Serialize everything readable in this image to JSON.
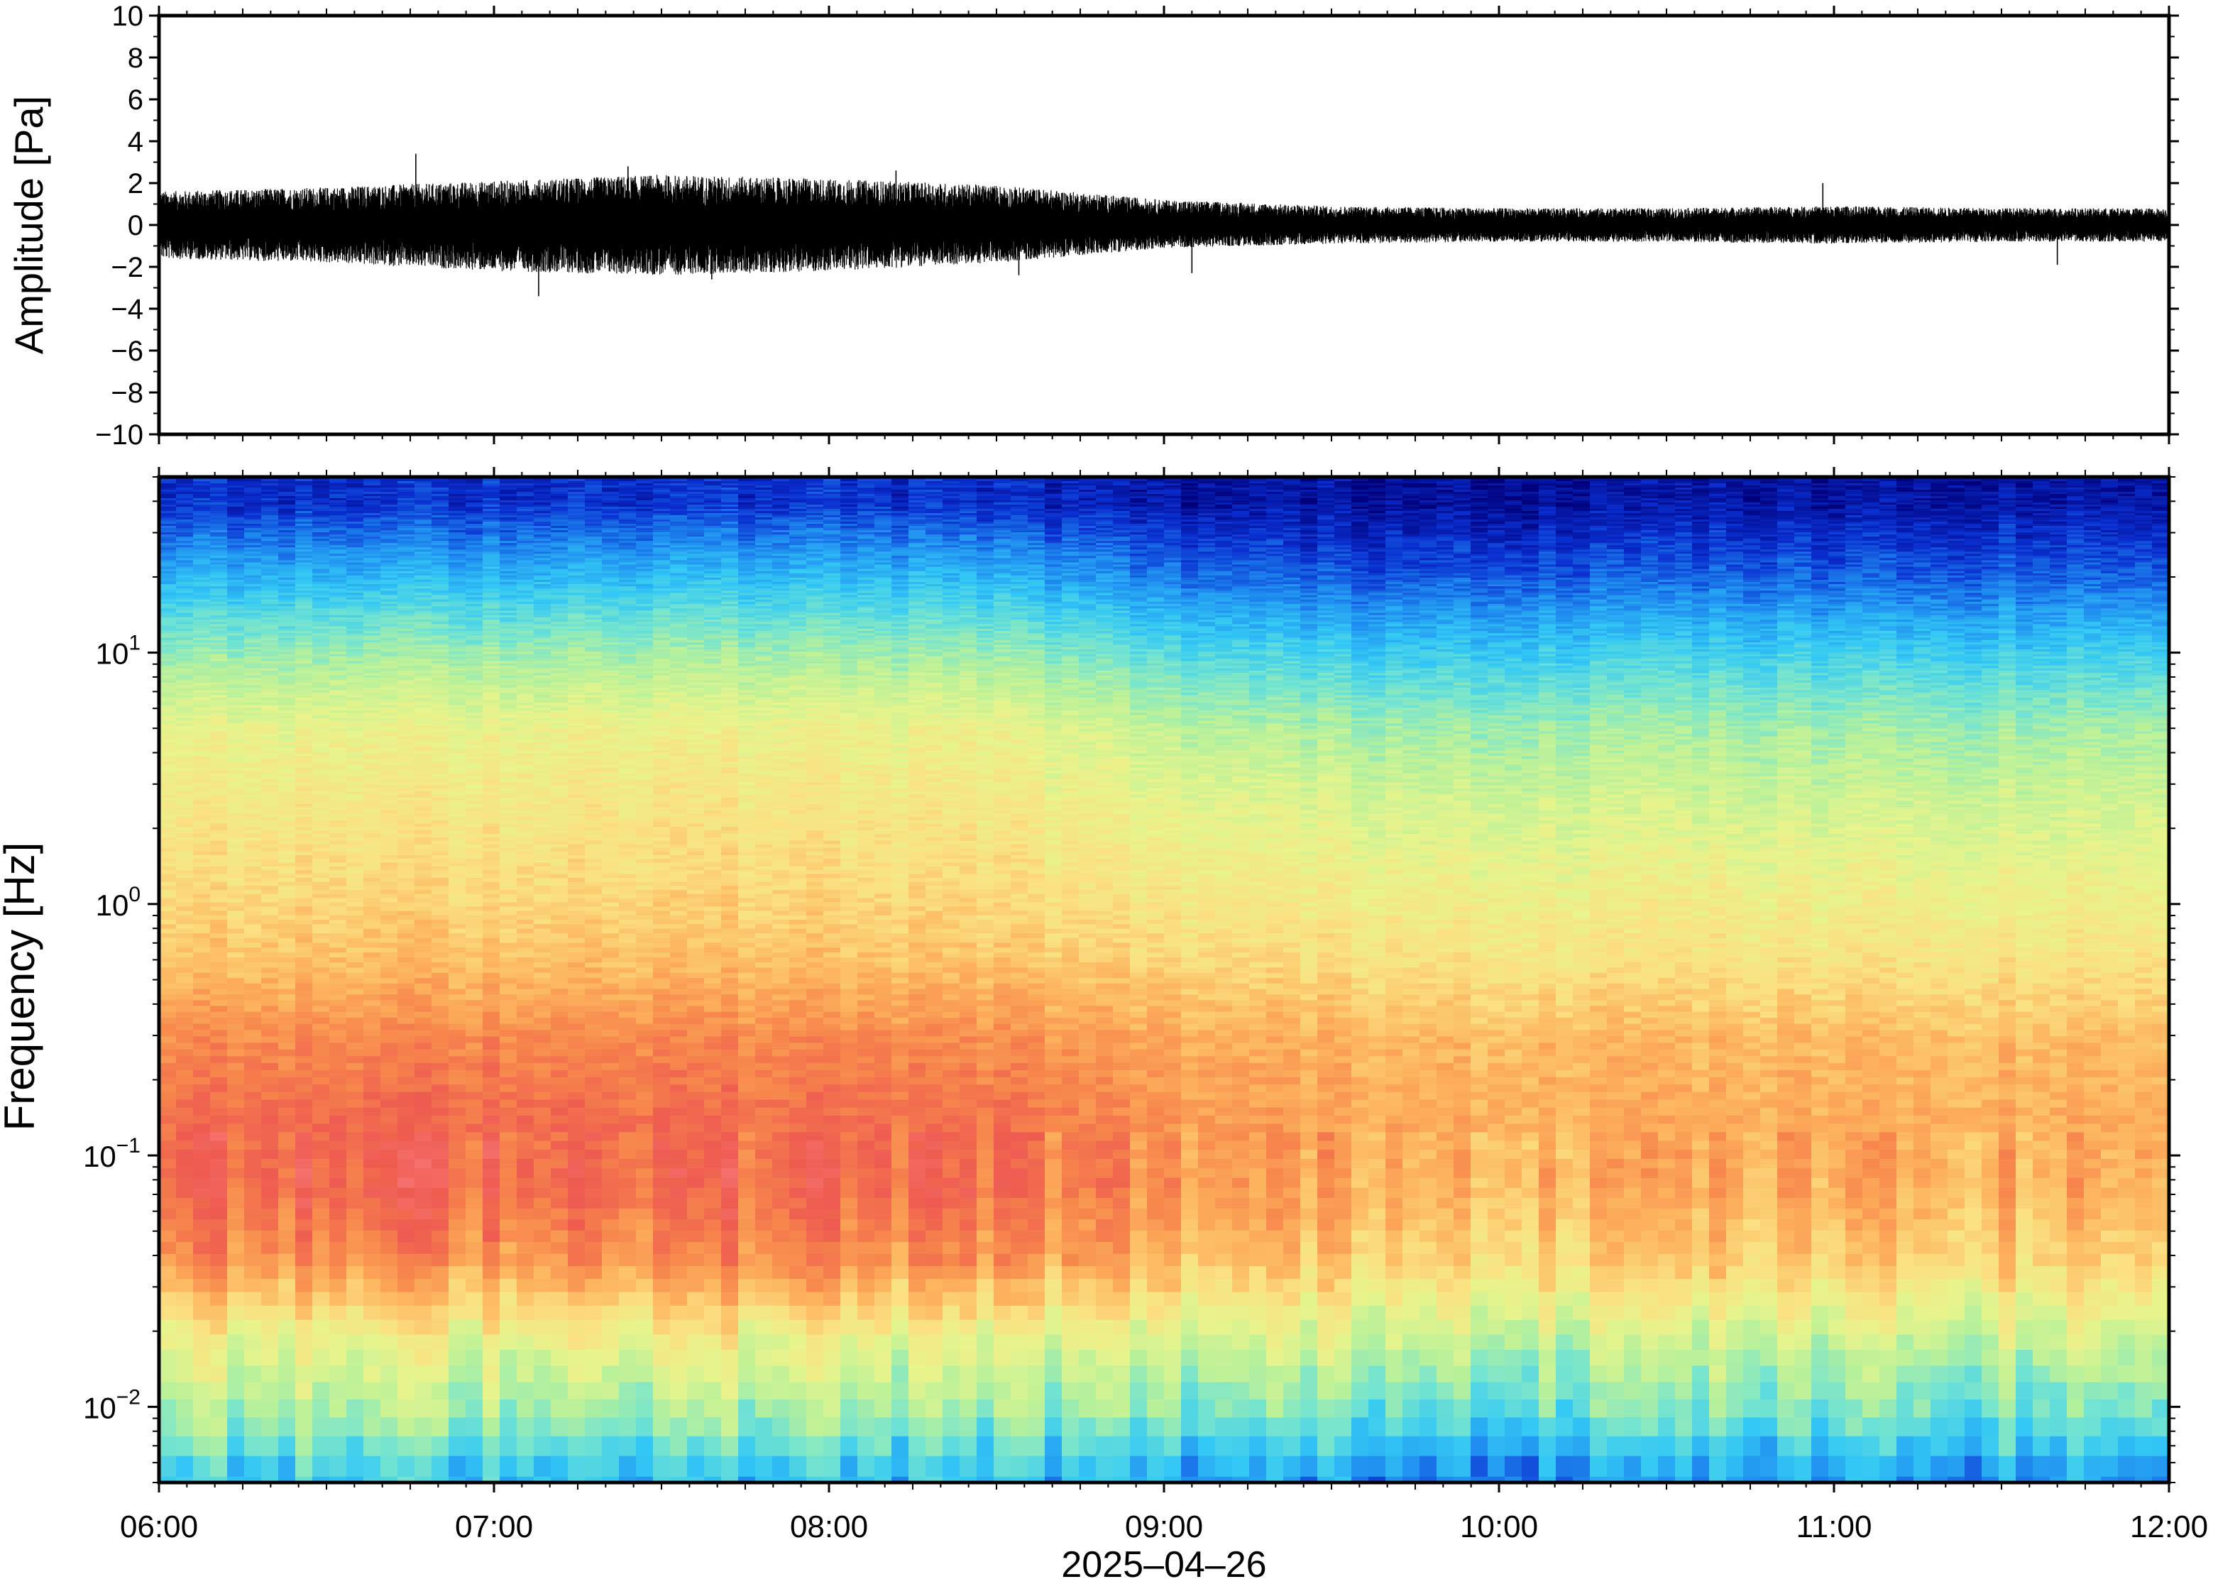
{
  "chart_data": [
    {
      "type": "line",
      "panel": "waveform",
      "ylabel": "Amplitude [Pa]",
      "ylim": [
        -10,
        10
      ],
      "yticks": [
        10,
        8,
        6,
        4,
        2,
        0,
        -2,
        -4,
        -6,
        -8,
        -10
      ],
      "ytick_labels": [
        "10",
        "8",
        "6",
        "4",
        "2",
        "0",
        "−2",
        "−4",
        "−6",
        "−8",
        "−10"
      ],
      "series": [
        {
          "x": [
            "06:00",
            "06:30",
            "07:00",
            "07:30",
            "08:00",
            "08:30",
            "09:00",
            "09:30",
            "10:00",
            "10:30",
            "11:00",
            "11:30",
            "12:00"
          ],
          "envelope_max": [
            1.6,
            1.8,
            2.1,
            2.4,
            2.2,
            1.9,
            1.2,
            0.9,
            0.8,
            0.8,
            0.9,
            0.8,
            0.8
          ],
          "envelope_min": [
            -1.6,
            -1.8,
            -2.2,
            -2.4,
            -2.2,
            -1.8,
            -1.1,
            -0.9,
            -0.8,
            -0.8,
            -0.9,
            -0.8,
            -0.8
          ],
          "spikes": [
            {
              "time": "06:46",
              "value": 3.4
            },
            {
              "time": "07:08",
              "value": -3.4
            },
            {
              "time": "07:24",
              "value": 2.8
            },
            {
              "time": "07:39",
              "value": -2.6
            },
            {
              "time": "08:12",
              "value": 2.6
            },
            {
              "time": "08:34",
              "value": -2.4
            },
            {
              "time": "09:05",
              "value": -2.3
            },
            {
              "time": "10:58",
              "value": 2.0
            },
            {
              "time": "11:40",
              "value": -1.9
            }
          ]
        }
      ]
    },
    {
      "type": "heatmap",
      "panel": "spectrogram",
      "ylabel": "Frequency [Hz]",
      "yscale": "log",
      "ylim": [
        0.005,
        50
      ],
      "yticks": [
        0.01,
        0.1,
        1,
        10
      ],
      "ytick_labels": [
        {
          "base": "10",
          "exp": "−2"
        },
        {
          "base": "10",
          "exp": "−1"
        },
        {
          "base": "10",
          "exp": "0"
        },
        {
          "base": "10",
          "exp": "1"
        }
      ],
      "colormap": "spectral",
      "palette": [
        "#00007a",
        "#0a2fd0",
        "#1f8cf0",
        "#33c8f5",
        "#74e4d0",
        "#b9f19a",
        "#e8f48c",
        "#fbe081",
        "#fdb45e",
        "#f7864c",
        "#ee5b50",
        "#f97a7a"
      ],
      "x": [
        "06:00",
        "06:30",
        "07:00",
        "07:30",
        "08:00",
        "08:30",
        "09:00",
        "09:30",
        "10:00",
        "10:30",
        "11:00",
        "11:30",
        "12:00"
      ],
      "frequencies_hz": [
        0.006,
        0.01,
        0.02,
        0.04,
        0.08,
        0.15,
        0.3,
        0.6,
        1.2,
        2.5,
        5,
        10,
        20,
        40
      ],
      "z_level": [
        [
          3.0,
          4.6,
          6.0,
          8.6,
          9.6,
          9.5,
          8.8,
          7.6,
          7.0,
          6.6,
          6.0,
          4.5,
          2.6,
          0.9
        ],
        [
          3.1,
          4.7,
          6.1,
          8.7,
          9.7,
          9.6,
          8.9,
          7.7,
          7.1,
          6.6,
          6.1,
          4.6,
          2.7,
          0.9
        ],
        [
          3.2,
          4.8,
          6.3,
          8.8,
          9.9,
          9.7,
          9.0,
          7.8,
          7.2,
          6.7,
          6.2,
          4.7,
          2.8,
          1.0
        ],
        [
          3.1,
          4.8,
          6.4,
          8.9,
          9.8,
          9.6,
          9.0,
          7.8,
          7.2,
          6.8,
          6.3,
          4.8,
          2.9,
          1.0
        ],
        [
          3.0,
          4.7,
          6.2,
          8.8,
          9.7,
          9.5,
          8.9,
          7.7,
          7.1,
          6.7,
          6.2,
          4.7,
          2.8,
          1.0
        ],
        [
          2.9,
          4.5,
          6.0,
          8.6,
          9.5,
          9.4,
          8.8,
          7.6,
          7.0,
          6.6,
          6.1,
          4.6,
          2.7,
          0.9
        ],
        [
          2.5,
          4.2,
          5.6,
          7.8,
          8.6,
          8.6,
          8.2,
          7.2,
          6.6,
          6.0,
          5.2,
          3.6,
          1.8,
          0.5
        ],
        [
          2.2,
          4.0,
          5.5,
          7.5,
          8.3,
          8.3,
          8.0,
          7.0,
          6.4,
          5.7,
          4.8,
          3.2,
          1.5,
          0.4
        ],
        [
          2.2,
          3.9,
          5.5,
          7.4,
          8.2,
          8.2,
          7.9,
          6.9,
          6.3,
          5.6,
          4.7,
          3.2,
          1.5,
          0.4
        ],
        [
          2.3,
          4.0,
          5.4,
          7.4,
          8.2,
          8.2,
          7.9,
          6.9,
          6.3,
          5.6,
          4.8,
          3.3,
          1.6,
          0.5
        ],
        [
          2.2,
          3.9,
          5.3,
          7.3,
          8.1,
          8.1,
          7.8,
          6.8,
          6.2,
          5.5,
          4.7,
          3.2,
          1.5,
          0.4
        ],
        [
          2.3,
          4.0,
          5.4,
          7.3,
          8.1,
          8.1,
          7.8,
          6.8,
          6.2,
          5.5,
          4.7,
          3.2,
          1.6,
          0.5
        ],
        [
          2.4,
          4.1,
          5.5,
          7.4,
          8.2,
          8.2,
          7.9,
          6.9,
          6.3,
          5.6,
          4.8,
          3.3,
          1.6,
          0.5
        ]
      ],
      "xlabel": "2025–04–26",
      "xtick_labels": [
        "06:00",
        "07:00",
        "08:00",
        "09:00",
        "10:00",
        "11:00",
        "12:00"
      ]
    }
  ]
}
